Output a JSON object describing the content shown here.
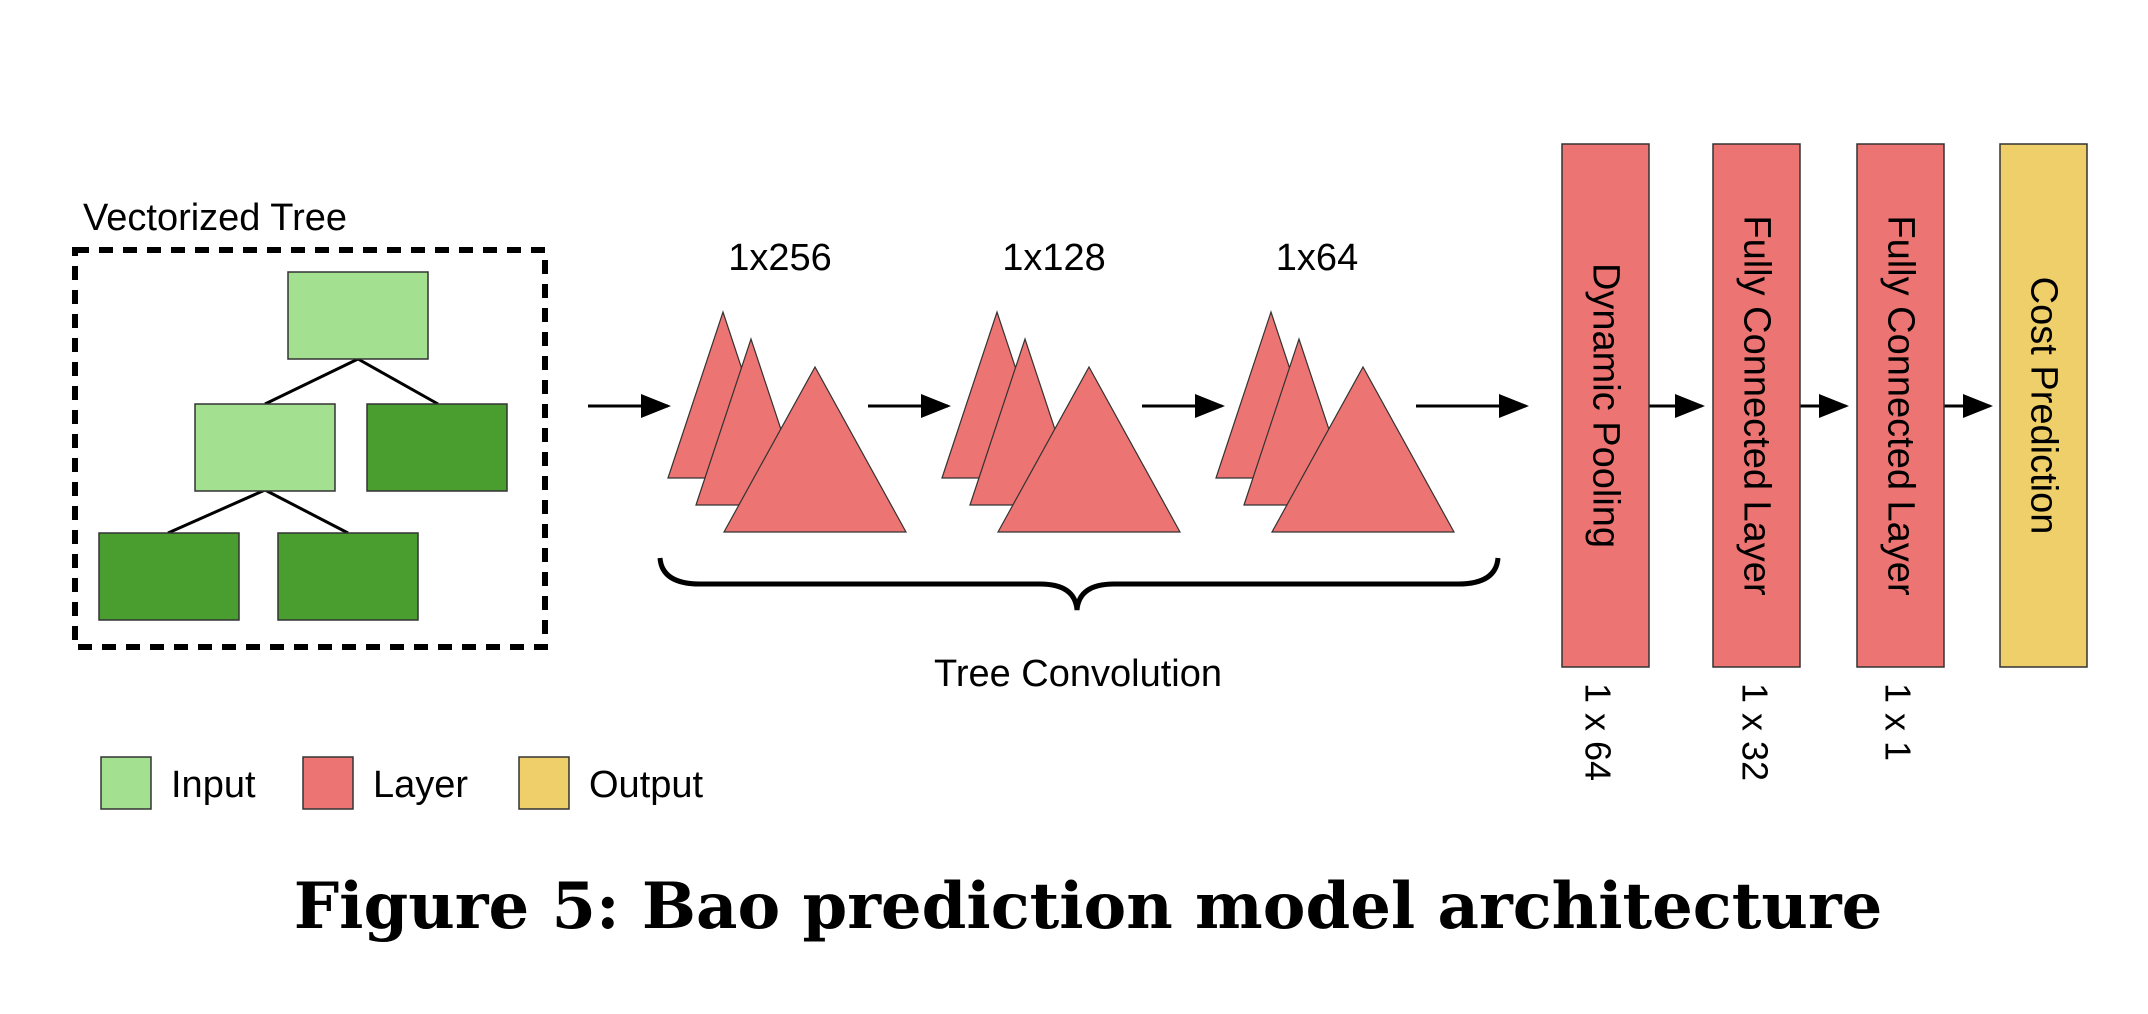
{
  "colors": {
    "input_light": "#a3e08f",
    "input_dark": "#4a9e30",
    "layer": "#ec7472",
    "output": "#eecf6a",
    "stroke": "#333333",
    "ink": "#000000"
  },
  "tree": {
    "title": "Vectorized Tree"
  },
  "convolution": {
    "sizes": [
      "1x256",
      "1x128",
      "1x64"
    ],
    "label": "Tree Convolution"
  },
  "layers": [
    {
      "label": "Dynamic Pooling",
      "size": "1 x 64",
      "kind": "layer"
    },
    {
      "label": "Fully Connected Layer",
      "size": "1 x 32",
      "kind": "layer"
    },
    {
      "label": "Fully Connected Layer",
      "size": "1 x 1",
      "kind": "layer"
    },
    {
      "label": "Cost Prediction",
      "size": "",
      "kind": "output"
    }
  ],
  "legend": [
    {
      "label": "Input",
      "kind": "input"
    },
    {
      "label": "Layer",
      "kind": "layer"
    },
    {
      "label": "Output",
      "kind": "output"
    }
  ],
  "caption": "Figure 5: Bao prediction model architecture"
}
